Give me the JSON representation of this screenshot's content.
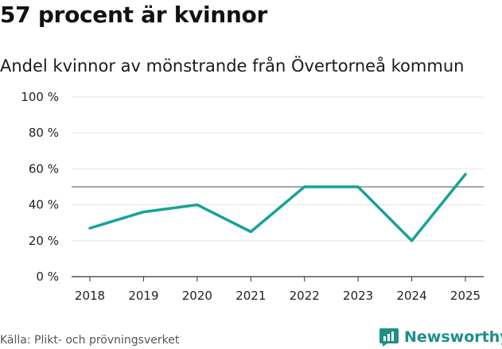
{
  "header": {
    "title": "57 procent är kvinnor",
    "subtitle": "Andel kvinnor av mönstrande från Övertorneå kommun"
  },
  "footer": {
    "source": "Källa: Plikt- och prövningsverket",
    "brand": "Newsworthy",
    "brand_icon": "bar-chart-speech-bubble-icon"
  },
  "colors": {
    "line": "#17a398",
    "grid": "#e2e2e2",
    "reference": "#707070",
    "brand": "#1e8f86"
  },
  "chart_data": {
    "type": "line",
    "title": "57 procent är kvinnor",
    "subtitle": "Andel kvinnor av mönstrande från Övertorneå kommun",
    "xlabel": "",
    "ylabel": "",
    "categories": [
      "2018",
      "2019",
      "2020",
      "2021",
      "2022",
      "2023",
      "2024",
      "2025"
    ],
    "series": [
      {
        "values": [
          27,
          36,
          40,
          25,
          50,
          50,
          20,
          57
        ]
      }
    ],
    "reference_line": 50,
    "ylim": [
      0,
      100
    ],
    "yticks": [
      0,
      20,
      40,
      60,
      80,
      100
    ],
    "ytick_labels": [
      "0 %",
      "20 %",
      "40 %",
      "60 %",
      "80 %",
      "100 %"
    ],
    "grid": true,
    "legend": "none"
  }
}
